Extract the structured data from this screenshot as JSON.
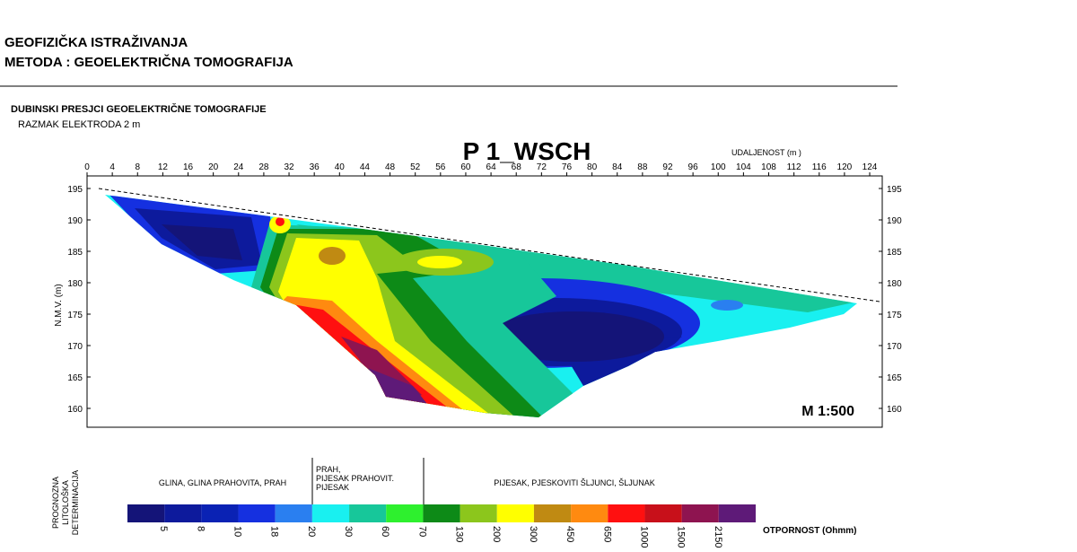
{
  "header": {
    "lines": [
      "GEOFIZIČKA  ISTRAŽIVANJA",
      "METODA : GEOELEKTRIČNA TOMOGRAFIJA"
    ]
  },
  "section": {
    "title": "DUBINSKI PRESJCI GEOELEKTRIČNE TOMOGRAFIJE",
    "subtitle": "RAZMAK ELEKTRODA 2 m"
  },
  "profile": {
    "title": "P 1_WSCH",
    "x_label": "UDALJENOST (m )",
    "y_label": "N.M.V. (m)",
    "scale": "M 1:500",
    "x_ticks": [
      0,
      4,
      8,
      12,
      16,
      20,
      24,
      28,
      32,
      36,
      40,
      44,
      48,
      52,
      56,
      60,
      64,
      68,
      72,
      76,
      80,
      84,
      88,
      92,
      96,
      100,
      104,
      108,
      112,
      116,
      120,
      124
    ],
    "y_ticks": [
      195,
      190,
      185,
      180,
      175,
      170,
      165,
      160
    ]
  },
  "lithology": {
    "label": [
      "PROGNOZNA",
      "LITOLOŠKA",
      "DETERMINACIJA"
    ],
    "units": [
      [
        "GLINA, GLINA PRAHOVITA, PRAH"
      ],
      [
        "PRAH,",
        "PIJESAK PRAHOVIT.",
        "PIJESAK"
      ],
      [
        "PIJESAK, PJESKOVITI ŠLJUNCI, ŠLJUNAK"
      ]
    ]
  },
  "legend": {
    "colors": [
      "#141478",
      "#0d1a9c",
      "#0a22b4",
      "#1530e0",
      "#2a7ff0",
      "#19f0f0",
      "#17c79a",
      "#2ef02e",
      "#0d8a17",
      "#8cc61c",
      "#ffff00",
      "#c08a12",
      "#ff8a10",
      "#ff1010",
      "#c8101a",
      "#8e1450",
      "#5e1a78"
    ],
    "labels": [
      5,
      8,
      10,
      18,
      20,
      30,
      60,
      70,
      130,
      200,
      300,
      450,
      650,
      1000,
      1500,
      2150
    ],
    "unit": "OTPORNOST (Ohmm)"
  }
}
